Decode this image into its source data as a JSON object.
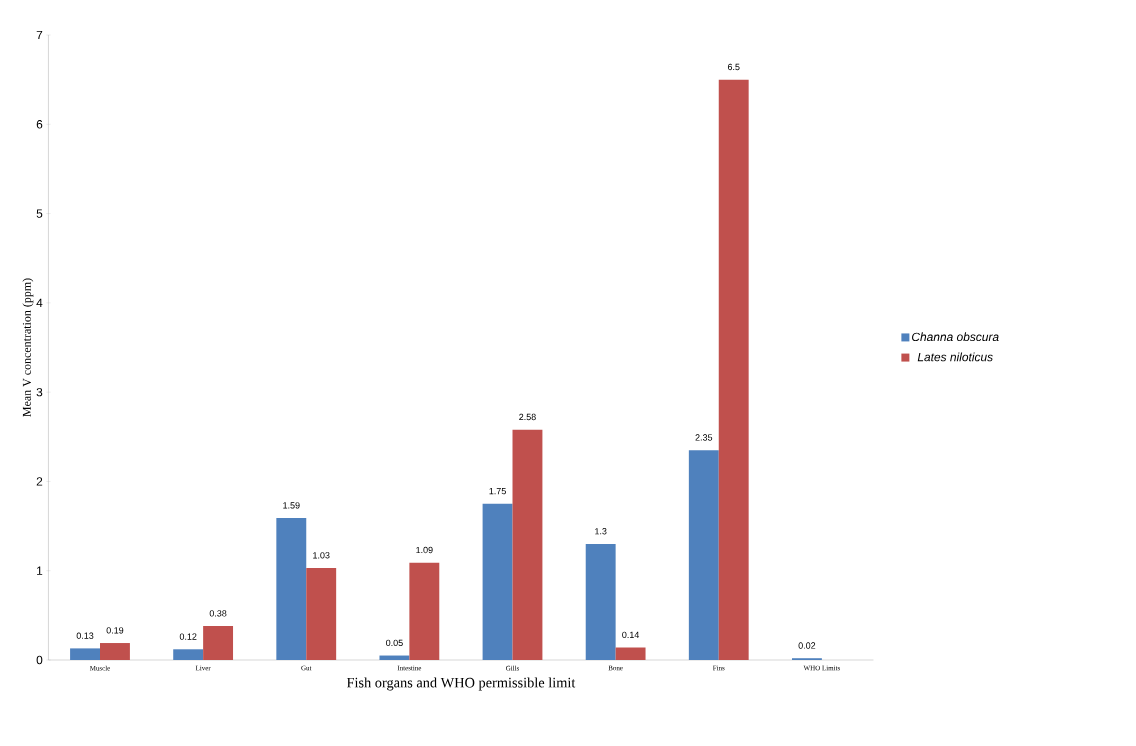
{
  "chart_data": {
    "type": "bar",
    "xlabel": "Fish organs and WHO permissible limit",
    "ylabel": "Mean V  concentration (ppm)",
    "categories": [
      "Muscle",
      "Liver",
      "Gut",
      "Intestine",
      "Gills",
      "Bone",
      "Fins",
      "WHO Limits"
    ],
    "series": [
      {
        "name": "Channa obscura",
        "color": "#4f81bd",
        "values": [
          0.13,
          0.12,
          1.59,
          0.05,
          1.75,
          1.3,
          2.35,
          0.02
        ]
      },
      {
        "name": "Lates niloticus",
        "color": "#c0504d",
        "values": [
          0.19,
          0.38,
          1.03,
          1.09,
          2.58,
          0.14,
          6.5,
          null
        ]
      }
    ],
    "ylim": [
      0,
      7
    ],
    "yticks": [
      0,
      1,
      2,
      3,
      4,
      5,
      6,
      7
    ],
    "data_labels": true,
    "legend": "right",
    "grid": false
  }
}
